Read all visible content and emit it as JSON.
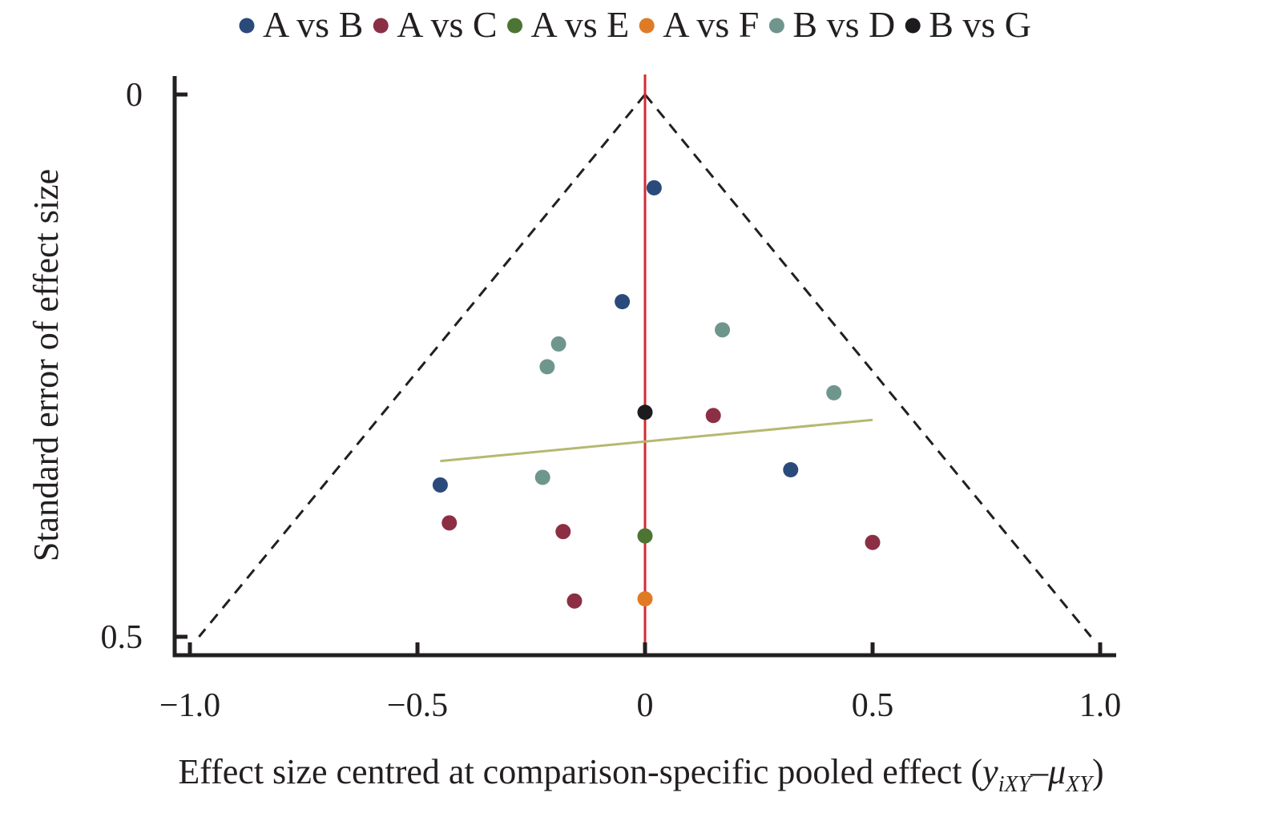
{
  "chart_data": {
    "type": "scatter",
    "xlabel_main": "Effect size centred at comparison-specific pooled effect",
    "xlabel_paren_open": "(",
    "xlabel_paren_close": ")",
    "xlabel_var_y": "y",
    "xlabel_var_y_sub": "iXY",
    "xlabel_minus": "–",
    "xlabel_var_mu": "μ",
    "xlabel_var_mu_sub": "XY",
    "ylabel": "Standard error of effect size",
    "xlim": [
      -1.0,
      1.0
    ],
    "ylim": [
      0,
      0.5
    ],
    "y_inverted": true,
    "x_ticks": [
      {
        "value": -1.0,
        "label": "−1.0"
      },
      {
        "value": -0.5,
        "label": "−0.5"
      },
      {
        "value": 0,
        "label": "0"
      },
      {
        "value": 0.5,
        "label": "0.5"
      },
      {
        "value": 1.0,
        "label": "1.0"
      }
    ],
    "y_ticks": [
      {
        "value": 0,
        "label": "0"
      },
      {
        "value": 0.5,
        "label": "0.5"
      }
    ],
    "grid": false,
    "legend_position": "top",
    "funnel": {
      "apex": [
        0,
        0
      ],
      "left_end": [
        -0.98,
        0.5
      ],
      "right_end": [
        0.98,
        0.5
      ],
      "style": "dashed",
      "color": "#231f20"
    },
    "reference_line": {
      "x": 0,
      "color": "#d42a33"
    },
    "regression_line": {
      "x": [
        -0.45,
        0.5
      ],
      "y": [
        0.338,
        0.3
      ],
      "color": "#b6b870"
    },
    "series": [
      {
        "name": "A vs B",
        "color": "#2b4a7c",
        "points": [
          [
            0.02,
            0.086
          ],
          [
            -0.05,
            0.191
          ],
          [
            -0.45,
            0.36
          ],
          [
            0.32,
            0.346
          ]
        ]
      },
      {
        "name": "A vs C",
        "color": "#8c2f45",
        "points": [
          [
            0.15,
            0.296
          ],
          [
            -0.43,
            0.395
          ],
          [
            -0.18,
            0.403
          ],
          [
            0.5,
            0.413
          ],
          [
            -0.155,
            0.467
          ]
        ]
      },
      {
        "name": "A vs E",
        "color": "#4c7433",
        "points": [
          [
            0,
            0.407
          ]
        ]
      },
      {
        "name": "A vs F",
        "color": "#e07b25",
        "points": [
          [
            0,
            0.465
          ]
        ]
      },
      {
        "name": "B vs D",
        "color": "#6f968d",
        "points": [
          [
            0.17,
            0.217
          ],
          [
            -0.19,
            0.23
          ],
          [
            -0.215,
            0.251
          ],
          [
            0.415,
            0.275
          ],
          [
            -0.225,
            0.353
          ]
        ]
      },
      {
        "name": "B vs G",
        "color": "#1d1b1e",
        "points": [
          [
            0,
            0.293
          ]
        ]
      }
    ]
  }
}
